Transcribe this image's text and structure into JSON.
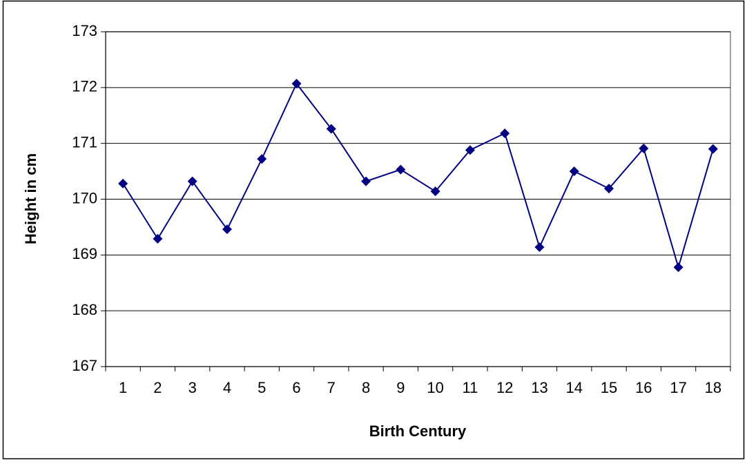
{
  "chart_data": {
    "type": "line",
    "x_label": "Birth Century",
    "y_label": "Height in cm",
    "categories": [
      "1",
      "2",
      "3",
      "4",
      "5",
      "6",
      "7",
      "8",
      "9",
      "10",
      "11",
      "12",
      "13",
      "14",
      "15",
      "16",
      "17",
      "18"
    ],
    "series": [
      {
        "name": "Height",
        "color": "#000080",
        "values": [
          170.28,
          169.29,
          170.32,
          169.46,
          170.72,
          172.07,
          171.26,
          170.32,
          170.53,
          170.14,
          170.88,
          171.18,
          169.14,
          170.5,
          170.19,
          170.91,
          168.78,
          170.9
        ]
      }
    ],
    "ylim": [
      167,
      173
    ],
    "yticks": [
      167,
      168,
      169,
      170,
      171,
      172,
      173
    ],
    "grid": true
  }
}
